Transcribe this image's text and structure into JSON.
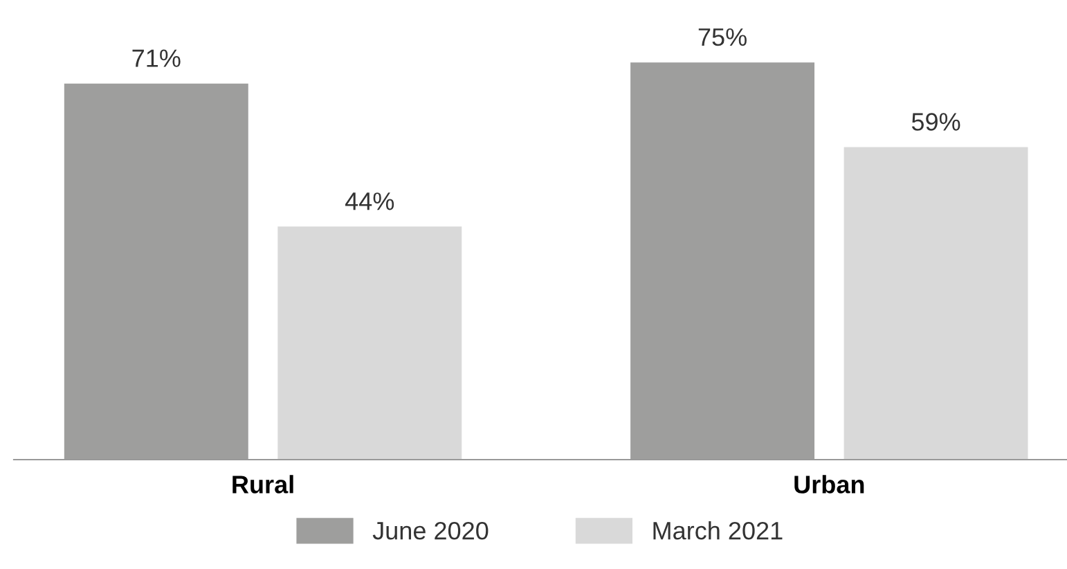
{
  "chart_data": {
    "type": "bar",
    "categories": [
      "Rural",
      "Urban"
    ],
    "series": [
      {
        "name": "June 2020",
        "color": "#9e9e9d",
        "values": [
          71,
          75
        ],
        "value_labels": [
          "71%",
          "75%"
        ]
      },
      {
        "name": "March 2021",
        "color": "#d9d9d9",
        "values": [
          44,
          59
        ],
        "value_labels": [
          "44%",
          "59%"
        ]
      }
    ],
    "legend": "bottom",
    "grid": false,
    "tick_labels": "x"
  }
}
